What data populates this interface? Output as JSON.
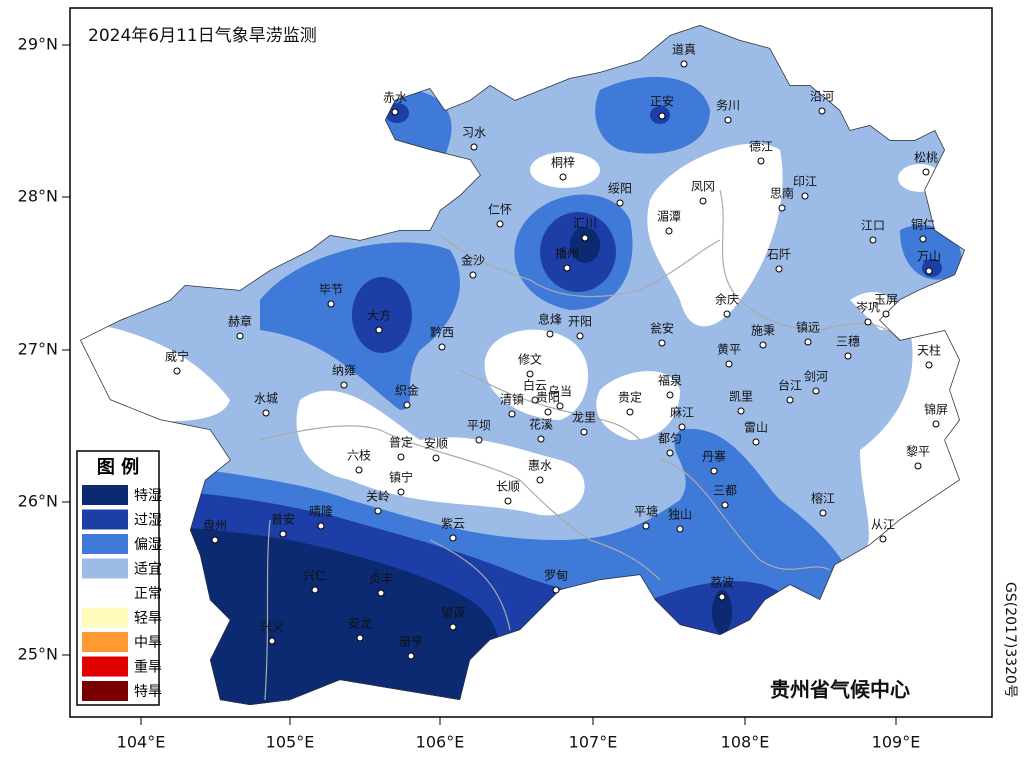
{
  "title": "2024年6月11日气象旱涝监测",
  "legend": {
    "title": "图 例",
    "items": [
      {
        "label": "特湿",
        "color": "#0b2a72"
      },
      {
        "label": "过湿",
        "color": "#1d3ea6"
      },
      {
        "label": "偏湿",
        "color": "#3f7ad8"
      },
      {
        "label": "适宜",
        "color": "#9dbbe7"
      },
      {
        "label": "正常",
        "color": "#ffffff"
      },
      {
        "label": "轻旱",
        "color": "#fffbbd"
      },
      {
        "label": "中旱",
        "color": "#ff9933"
      },
      {
        "label": "重旱",
        "color": "#e00000"
      },
      {
        "label": "特旱",
        "color": "#7a0000"
      }
    ]
  },
  "axes": {
    "lon_labels": [
      "104°E",
      "105°E",
      "106°E",
      "107°E",
      "108°E",
      "109°E"
    ],
    "lat_labels": [
      "29°N",
      "28°N",
      "27°N",
      "26°N",
      "25°N"
    ]
  },
  "cities": [
    "赤水",
    "习水",
    "桐梓",
    "正安",
    "道真",
    "务川",
    "沿河",
    "德江",
    "松桃",
    "凤冈",
    "思南",
    "印江",
    "绥阳",
    "仁怀",
    "汇川",
    "湄潭",
    "江口",
    "铜仁",
    "播州",
    "万山",
    "金沙",
    "石阡",
    "毕节",
    "赫章",
    "大方",
    "黔西",
    "息烽",
    "开阳",
    "余庆",
    "玉屏",
    "岑巩",
    "瓮安",
    "施秉",
    "镇远",
    "威宁",
    "三穗",
    "黄平",
    "天柱",
    "修文",
    "纳雍",
    "福泉",
    "白云",
    "乌当",
    "剑河",
    "台江",
    "凯里",
    "织金",
    "贵定",
    "水城",
    "清镇",
    "贵阳",
    "锦屏",
    "麻江",
    "龙里",
    "花溪",
    "平坝",
    "雷山",
    "都匀",
    "安顺",
    "普定",
    "六枝",
    "黎平",
    "丹寨",
    "惠水",
    "镇宁",
    "长顺",
    "三都",
    "关岭",
    "晴隆",
    "榕江",
    "平塘",
    "独山",
    "盘州",
    "普安",
    "紫云",
    "从江",
    "兴仁",
    "贞丰",
    "罗甸",
    "望谟",
    "荔波",
    "兴义",
    "安龙",
    "册亨"
  ],
  "credit": "贵州省气候中心",
  "map_code": "GS(2017)3320号"
}
